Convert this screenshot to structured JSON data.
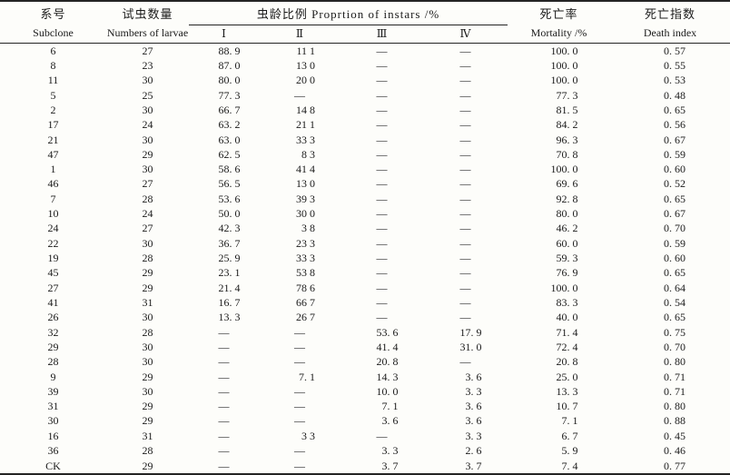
{
  "colors": {
    "background": "#fdfdfa",
    "text": "#1b1b1b",
    "rule": "#242424"
  },
  "table": {
    "header": {
      "subclone": {
        "zh": "系号",
        "en": "Subclone"
      },
      "larvae": {
        "zh": "试虫数量",
        "en": "Numbers of larvae"
      },
      "instars": {
        "group_label": "虫龄比例 Proprtion of instars /%",
        "sub": [
          "Ⅰ",
          "Ⅱ",
          "Ⅲ",
          "Ⅳ"
        ]
      },
      "mortality": {
        "zh": "死亡率",
        "en": "Mortality /%"
      },
      "death_index": {
        "zh": "死亡指数",
        "en": "Death index"
      }
    },
    "rows": [
      [
        "6",
        "27",
        "88. 9",
        "11 1",
        "—",
        "—",
        "100. 0",
        "0. 57"
      ],
      [
        "8",
        "23",
        "87. 0",
        "13 0",
        "—",
        "—",
        "100. 0",
        "0. 55"
      ],
      [
        "11",
        "30",
        "80. 0",
        "20 0",
        "—",
        "—",
        "100. 0",
        "0. 53"
      ],
      [
        "5",
        "25",
        "77. 3",
        "—",
        "—",
        "—",
        "77. 3",
        "0. 48"
      ],
      [
        "2",
        "30",
        "66. 7",
        "14 8",
        "—",
        "—",
        "81. 5",
        "0. 65"
      ],
      [
        "17",
        "24",
        "63. 2",
        "21 1",
        "—",
        "—",
        "84. 2",
        "0. 56"
      ],
      [
        "21",
        "30",
        "63. 0",
        "33 3",
        "—",
        "—",
        "96. 3",
        "0. 67"
      ],
      [
        "47",
        "29",
        "62. 5",
        "8 3",
        "—",
        "—",
        "70. 8",
        "0. 59"
      ],
      [
        "1",
        "30",
        "58. 6",
        "41 4",
        "—",
        "—",
        "100. 0",
        "0. 60"
      ],
      [
        "46",
        "27",
        "56. 5",
        "13 0",
        "—",
        "—",
        "69. 6",
        "0. 52"
      ],
      [
        "7",
        "28",
        "53. 6",
        "39 3",
        "—",
        "—",
        "92. 8",
        "0. 65"
      ],
      [
        "10",
        "24",
        "50. 0",
        "30 0",
        "—",
        "—",
        "80. 0",
        "0. 67"
      ],
      [
        "24",
        "27",
        "42. 3",
        "3 8",
        "—",
        "—",
        "46. 2",
        "0. 70"
      ],
      [
        "22",
        "30",
        "36. 7",
        "23 3",
        "—",
        "—",
        "60. 0",
        "0. 59"
      ],
      [
        "19",
        "28",
        "25. 9",
        "33 3",
        "—",
        "—",
        "59. 3",
        "0. 60"
      ],
      [
        "45",
        "29",
        "23. 1",
        "53 8",
        "—",
        "—",
        "76. 9",
        "0. 65"
      ],
      [
        "27",
        "29",
        "21. 4",
        "78 6",
        "—",
        "—",
        "100. 0",
        "0. 64"
      ],
      [
        "41",
        "31",
        "16. 7",
        "66 7",
        "—",
        "—",
        "83. 3",
        "0. 54"
      ],
      [
        "26",
        "30",
        "13. 3",
        "26 7",
        "—",
        "—",
        "40. 0",
        "0. 65"
      ],
      [
        "32",
        "28",
        "—",
        "—",
        "53. 6",
        "17. 9",
        "71. 4",
        "0. 75"
      ],
      [
        "29",
        "30",
        "—",
        "—",
        "41. 4",
        "31. 0",
        "72. 4",
        "0. 70"
      ],
      [
        "28",
        "30",
        "—",
        "—",
        "20. 8",
        "—",
        "20. 8",
        "0. 80"
      ],
      [
        "9",
        "29",
        "—",
        "7. 1",
        "14. 3",
        "3. 6",
        "25. 0",
        "0. 71"
      ],
      [
        "39",
        "30",
        "—",
        "—",
        "10. 0",
        "3. 3",
        "13. 3",
        "0. 71"
      ],
      [
        "31",
        "29",
        "—",
        "—",
        "7. 1",
        "3. 6",
        "10. 7",
        "0. 80"
      ],
      [
        "30",
        "29",
        "—",
        "—",
        "3. 6",
        "3. 6",
        "7. 1",
        "0. 88"
      ],
      [
        "16",
        "31",
        "—",
        "3 3",
        "—",
        "3. 3",
        "6. 7",
        "0. 45"
      ],
      [
        "36",
        "28",
        "—",
        "—",
        "3. 3",
        "2. 6",
        "5. 9",
        "0. 46"
      ],
      [
        "CK",
        "29",
        "—",
        "—",
        "3. 7",
        "3. 7",
        "7. 4",
        "0. 77"
      ]
    ]
  }
}
